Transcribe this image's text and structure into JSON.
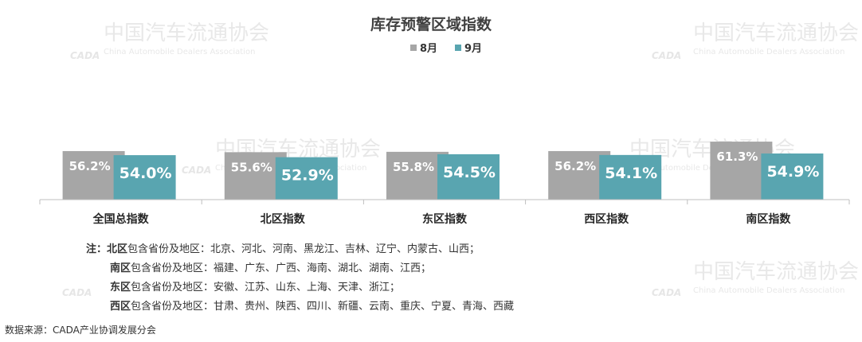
{
  "chart_data": {
    "type": "bar",
    "title": "库存预警区域指数",
    "categories": [
      "全国总指数",
      "北区指数",
      "东区指数",
      "西区指数",
      "南区指数"
    ],
    "series": [
      {
        "name": "8月",
        "color": "#a6a6a6",
        "values": [
          56.2,
          55.6,
          55.8,
          56.2,
          61.3
        ]
      },
      {
        "name": "9月",
        "color": "#59a5b0",
        "values": [
          54.0,
          52.9,
          54.5,
          54.1,
          54.9
        ]
      }
    ],
    "data_label_format": "percent_1dp",
    "data_labels": [
      [
        "56.2%",
        "55.6%",
        "55.8%",
        "56.2%",
        "61.3%"
      ],
      [
        "54.0%",
        "52.9%",
        "54.5%",
        "54.1%",
        "54.9%"
      ]
    ],
    "legend_position": "top",
    "grid": false,
    "xlabel": "",
    "ylabel": ""
  },
  "watermark": {
    "name_cn": "中国汽车流通协会",
    "name_en": "China Automobile Dealers Association",
    "logo_text": "CADA"
  },
  "notes": {
    "prefix": "注：",
    "lines": [
      {
        "region": "北区",
        "text": "包含省份及地区：北京、河北、河南、黑龙江、吉林、辽宁、内蒙古、山西；"
      },
      {
        "region": "南区",
        "text": "包含省份及地区：福建、广东、广西、海南、湖北、湖南、江西；"
      },
      {
        "region": "东区",
        "text": "包含省份及地区：安徽、江苏、山东、上海、天津、浙江；"
      },
      {
        "region": "西区",
        "text": "包含省份及地区：甘肃、贵州、陕西、四川、新疆、云南、重庆、宁夏、青海、西藏"
      }
    ]
  },
  "source": "数据来源：CADA产业协调发展分会"
}
